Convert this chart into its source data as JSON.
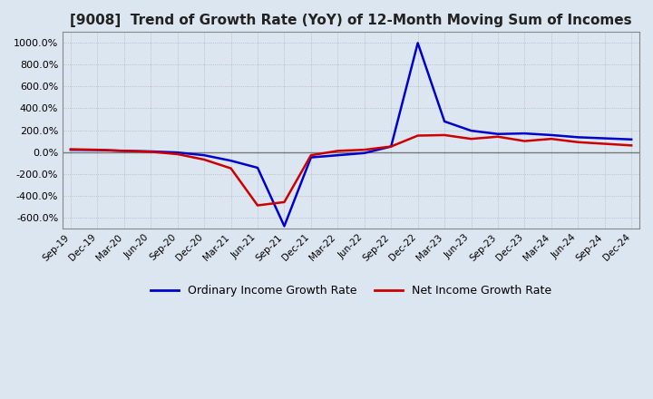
{
  "title": "[9008]  Trend of Growth Rate (YoY) of 12-Month Moving Sum of Incomes",
  "title_fontsize": 11,
  "background_color": "#dce6f0",
  "plot_bg_color": "#dce6f0",
  "grid_color": "#aaaaaa",
  "ylim": [
    -700,
    1100
  ],
  "yticks": [
    -600,
    -400,
    -200,
    0,
    200,
    400,
    600,
    800,
    1000
  ],
  "legend_labels": [
    "Ordinary Income Growth Rate",
    "Net Income Growth Rate"
  ],
  "legend_colors": [
    "#0000cc",
    "#cc0000"
  ],
  "x_labels": [
    "Sep-19",
    "Dec-19",
    "Mar-20",
    "Jun-20",
    "Sep-20",
    "Dec-20",
    "Mar-21",
    "Jun-21",
    "Sep-21",
    "Dec-21",
    "Mar-22",
    "Jun-22",
    "Sep-22",
    "Dec-22",
    "Mar-23",
    "Jun-23",
    "Sep-23",
    "Dec-23",
    "Mar-24",
    "Jun-24",
    "Sep-24",
    "Dec-24"
  ],
  "ordinary_income": [
    20,
    18,
    10,
    5,
    -5,
    -30,
    -80,
    -145,
    -680,
    -50,
    -30,
    -10,
    50,
    1000,
    280,
    195,
    165,
    170,
    155,
    135,
    125,
    115
  ],
  "net_income": [
    25,
    20,
    10,
    2,
    -20,
    -70,
    -150,
    -490,
    -460,
    -30,
    10,
    20,
    50,
    150,
    155,
    120,
    140,
    100,
    120,
    90,
    75,
    60
  ]
}
